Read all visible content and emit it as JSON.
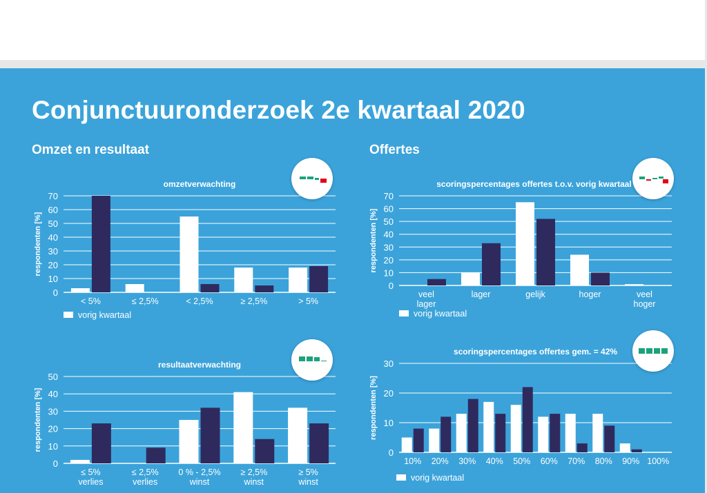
{
  "page": {
    "title": "Conjunctuuronderzoek 2e kwartaal 2020",
    "sections": [
      "Omzet en resultaat",
      "Offertes"
    ]
  },
  "colors": {
    "background": "#3ba3da",
    "current": "#2f2a5e",
    "previous": "#ffffff",
    "grid": "#ffffff",
    "icon_green": "#1aa37a",
    "icon_red": "#e2001a"
  },
  "chart_data": [
    {
      "id": "omzet",
      "type": "bar",
      "title": "omzetverwachting",
      "ylabel": "respondenten [%]",
      "xlabel": "",
      "ylim": [
        0,
        70
      ],
      "yticks": [
        0,
        10,
        20,
        30,
        40,
        50,
        60,
        70
      ],
      "grid": true,
      "categories": [
        [
          "< 5%"
        ],
        [
          "≤ 2,5%"
        ],
        [
          "< 2,5%"
        ],
        [
          "≥ 2,5%"
        ],
        [
          "> 5%"
        ]
      ],
      "series": [
        {
          "name": "vorig kwartaal",
          "values": [
            3,
            6,
            55,
            18,
            18
          ]
        },
        {
          "values": [
            70,
            0,
            6,
            5,
            19
          ]
        }
      ],
      "legend": "vorig kwartaal",
      "legend_position": "bottom-left",
      "badge_icon": "trend-down-icon"
    },
    {
      "id": "offertes",
      "type": "bar",
      "title": "scoringspercentages offertes t.o.v. vorig kwartaal",
      "ylabel": "respondenten [%]",
      "xlabel": "",
      "ylim": [
        0,
        70
      ],
      "yticks": [
        0,
        10,
        20,
        30,
        40,
        50,
        60,
        70
      ],
      "grid": true,
      "categories": [
        [
          "veel",
          "lager"
        ],
        [
          "lager"
        ],
        [
          "gelijk"
        ],
        [
          "hoger"
        ],
        [
          "veel",
          "hoger"
        ]
      ],
      "series": [
        {
          "name": "vorig kwartaal",
          "values": [
            0,
            10,
            65,
            24,
            1
          ]
        },
        {
          "values": [
            5,
            33,
            52,
            10,
            0
          ]
        }
      ],
      "legend": "vorig kwartaal",
      "legend_position": "bottom-left",
      "badge_icon": "trend-mixed-icon"
    },
    {
      "id": "resultaat",
      "type": "bar",
      "title": "resultaatverwachting",
      "ylabel": "respondenten [%]",
      "xlabel": "",
      "ylim": [
        0,
        50
      ],
      "yticks": [
        0,
        10,
        20,
        30,
        40,
        50
      ],
      "grid": true,
      "categories": [
        [
          "≤ 5%",
          "verlies"
        ],
        [
          "≤ 2,5%",
          "verlies"
        ],
        [
          "0 % - 2,5%",
          "winst"
        ],
        [
          "≥ 2,5%",
          "winst"
        ],
        [
          "≥ 5%",
          "winst"
        ]
      ],
      "series": [
        {
          "name": "vorig kwartaal",
          "values": [
            2,
            0,
            25,
            41,
            32
          ]
        },
        {
          "values": [
            23,
            9,
            32,
            14,
            23
          ]
        }
      ],
      "legend": "",
      "legend_position": "",
      "badge_icon": "trend-stable-icon"
    },
    {
      "id": "gemiddeld",
      "type": "bar",
      "title": "scoringspercentages offertes gem. = 42%",
      "ylabel": "respondenten [%]",
      "xlabel": "",
      "ylim": [
        0,
        30
      ],
      "yticks": [
        0,
        10,
        20,
        30
      ],
      "grid": true,
      "categories": [
        [
          "10%"
        ],
        [
          "20%"
        ],
        [
          "30%"
        ],
        [
          "40%"
        ],
        [
          "50%"
        ],
        [
          "60%"
        ],
        [
          "70%"
        ],
        [
          "80%"
        ],
        [
          "90%"
        ],
        [
          "100%"
        ]
      ],
      "series": [
        {
          "name": "vorig kwartaal",
          "values": [
            5,
            8,
            13,
            17,
            16,
            12,
            13,
            13,
            3,
            0
          ]
        },
        {
          "values": [
            8,
            12,
            18,
            13,
            22,
            13,
            3,
            9,
            1,
            0
          ]
        }
      ],
      "legend": "vorig kwartaal",
      "legend_position": "bottom-left",
      "badge_icon": "flat-bars-icon"
    }
  ]
}
